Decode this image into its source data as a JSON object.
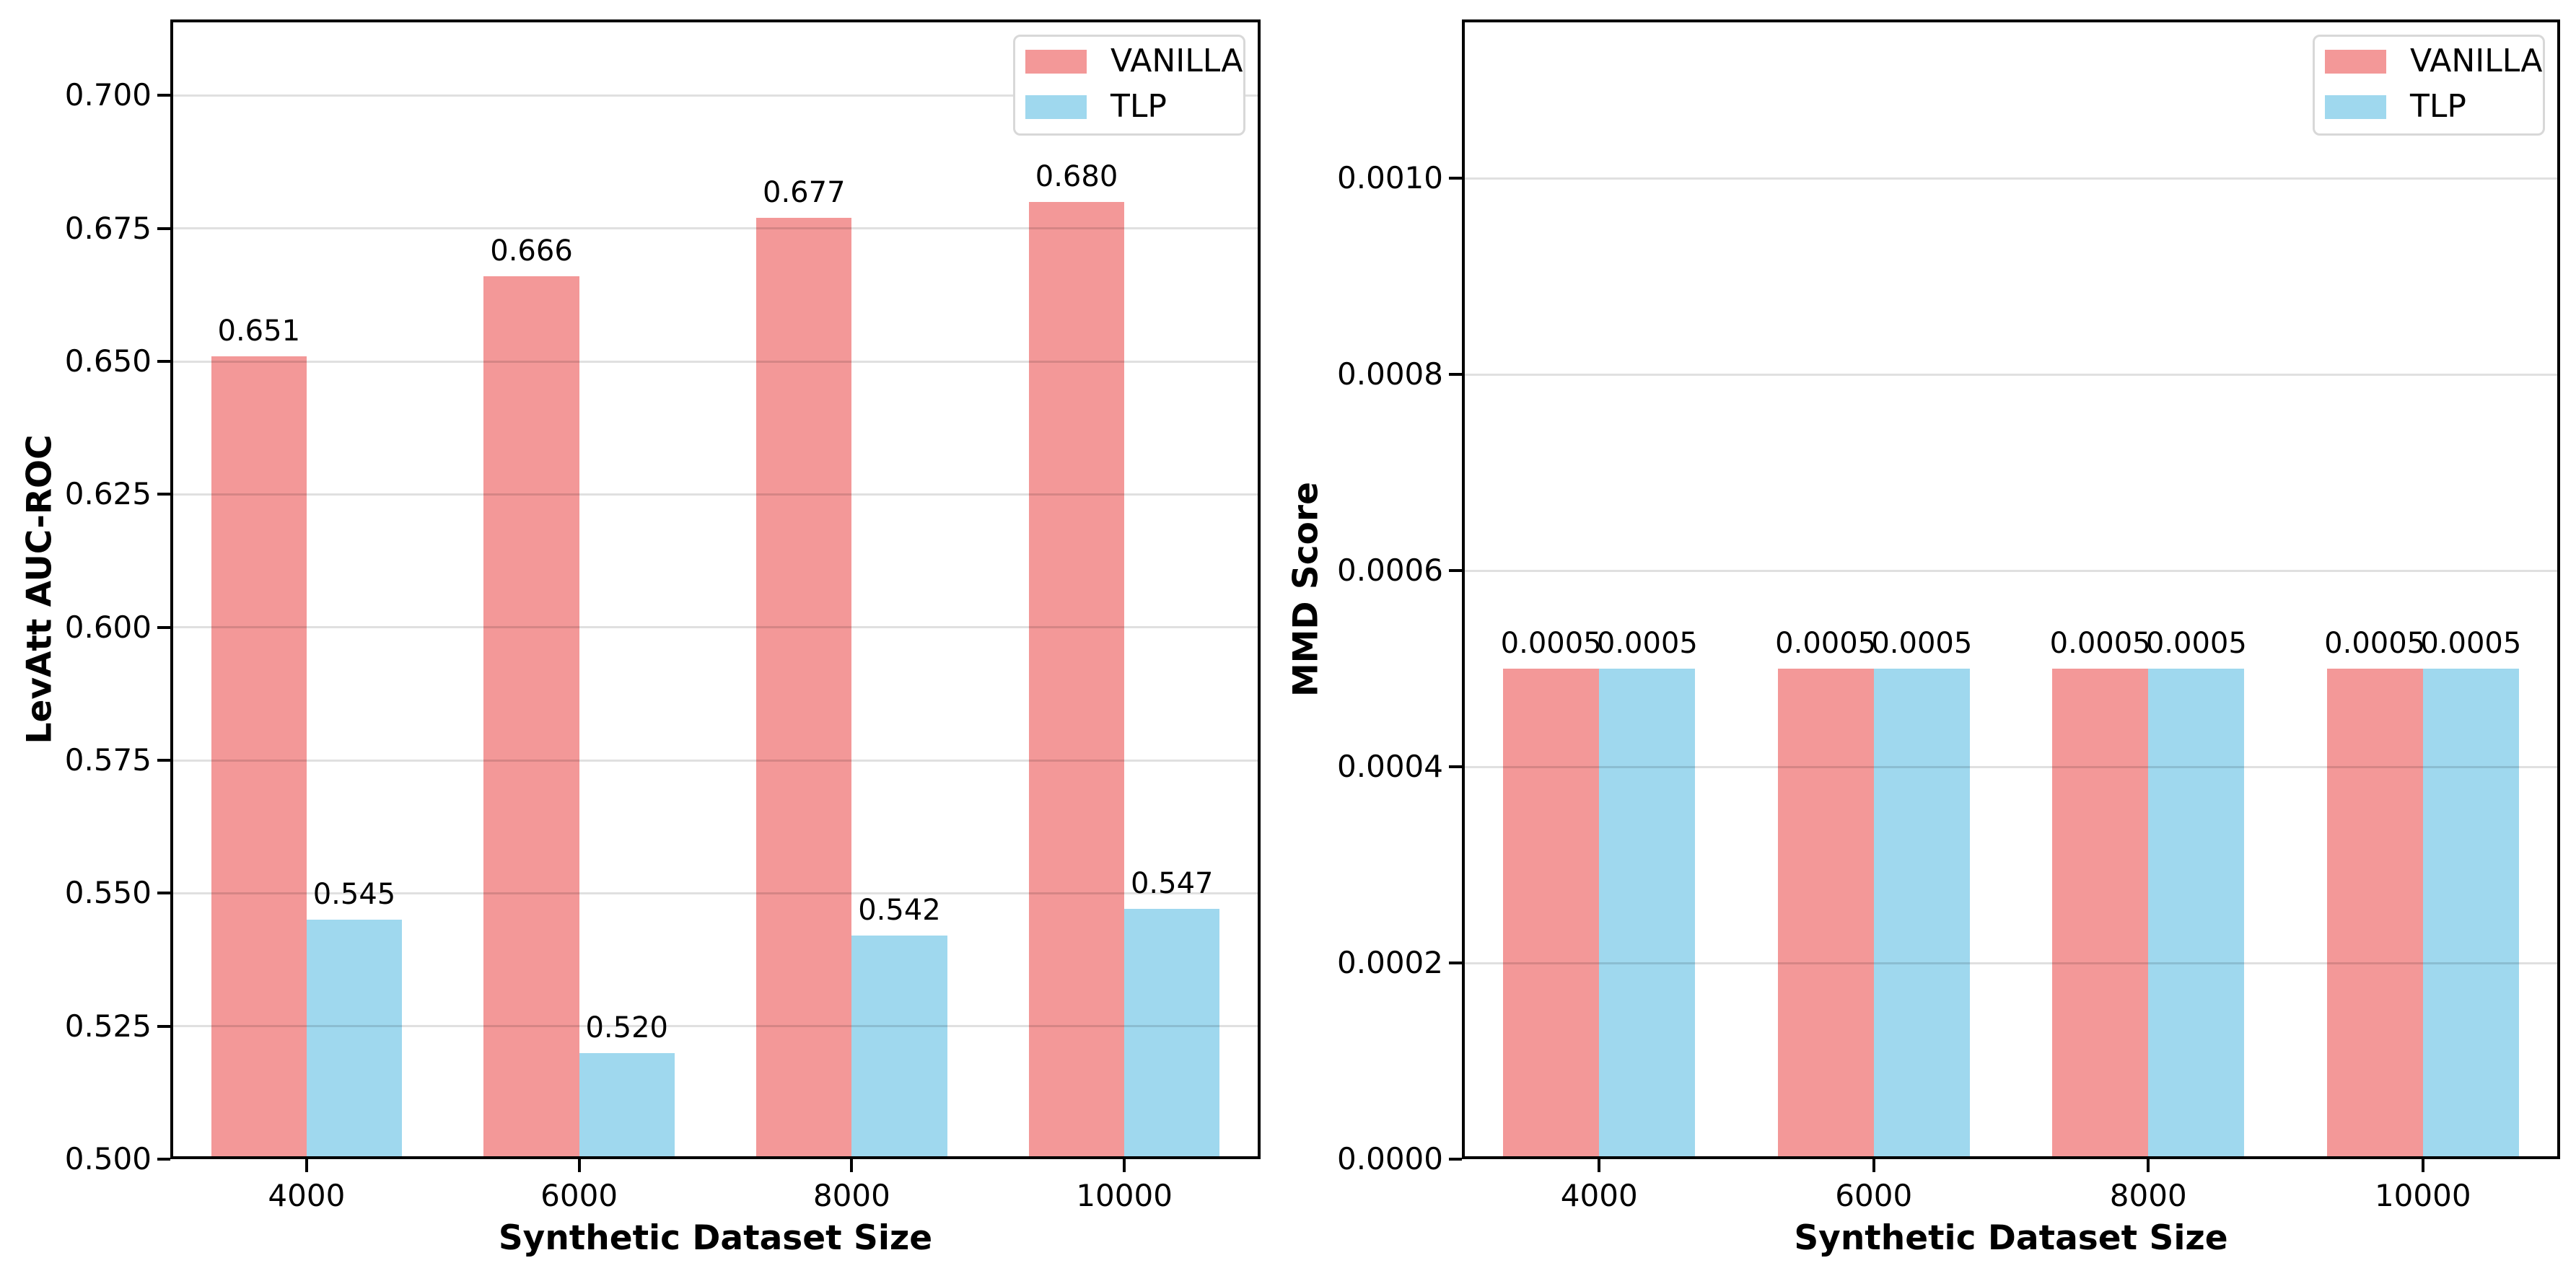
{
  "colors": {
    "vanilla_bar": "#f39898",
    "tlp_bar": "#9fd8ee",
    "spine": "#000000",
    "grid": "rgba(0,0,0,0.12)",
    "legend_border": "#d8d8d8",
    "text": "#000000",
    "background": "#ffffff"
  },
  "legend": {
    "entries": [
      {
        "label": "VANILLA",
        "color_key": "vanilla_bar"
      },
      {
        "label": "TLP",
        "color_key": "tlp_bar"
      }
    ]
  },
  "chart_data": [
    {
      "type": "bar",
      "title": "",
      "xlabel": "Synthetic Dataset Size",
      "ylabel": "LevAtt AUC-ROC",
      "categories": [
        "4000",
        "6000",
        "8000",
        "10000"
      ],
      "series": [
        {
          "name": "VANILLA",
          "color_key": "vanilla_bar",
          "values": [
            0.651,
            0.666,
            0.677,
            0.68
          ],
          "value_labels": [
            "0.651",
            "0.666",
            "0.677",
            "0.680"
          ]
        },
        {
          "name": "TLP",
          "color_key": "tlp_bar",
          "values": [
            0.545,
            0.52,
            0.542,
            0.547
          ],
          "value_labels": [
            "0.545",
            "0.520",
            "0.542",
            "0.547"
          ]
        }
      ],
      "ylim": [
        0.5,
        0.7143
      ],
      "yticks": {
        "values": [
          0.5,
          0.525,
          0.55,
          0.575,
          0.6,
          0.625,
          0.65,
          0.675,
          0.7
        ],
        "labels": [
          "0.500",
          "0.525",
          "0.550",
          "0.575",
          "0.600",
          "0.625",
          "0.650",
          "0.675",
          "0.700"
        ]
      },
      "grid": "y",
      "legend_position": "upper-right"
    },
    {
      "type": "bar",
      "title": "",
      "xlabel": "Synthetic Dataset Size",
      "ylabel": "MMD Score",
      "categories": [
        "4000",
        "6000",
        "8000",
        "10000"
      ],
      "series": [
        {
          "name": "VANILLA",
          "color_key": "vanilla_bar",
          "values": [
            0.0005,
            0.0005,
            0.0005,
            0.0005
          ],
          "value_labels": [
            "0.0005",
            "0.0005",
            "0.0005",
            "0.0005"
          ]
        },
        {
          "name": "TLP",
          "color_key": "tlp_bar",
          "values": [
            0.0005,
            0.0005,
            0.0005,
            0.0005
          ],
          "value_labels": [
            "0.0005",
            "0.0005",
            "0.0005",
            "0.0005"
          ]
        }
      ],
      "ylim": [
        0.0,
        0.001162
      ],
      "yticks": {
        "values": [
          0.0,
          0.0002,
          0.0004,
          0.0006,
          0.0008,
          0.001
        ],
        "labels": [
          "0.0000",
          "0.0002",
          "0.0004",
          "0.0006",
          "0.0008",
          "0.0010"
        ]
      },
      "grid": "y",
      "legend_position": "upper-right"
    }
  ]
}
